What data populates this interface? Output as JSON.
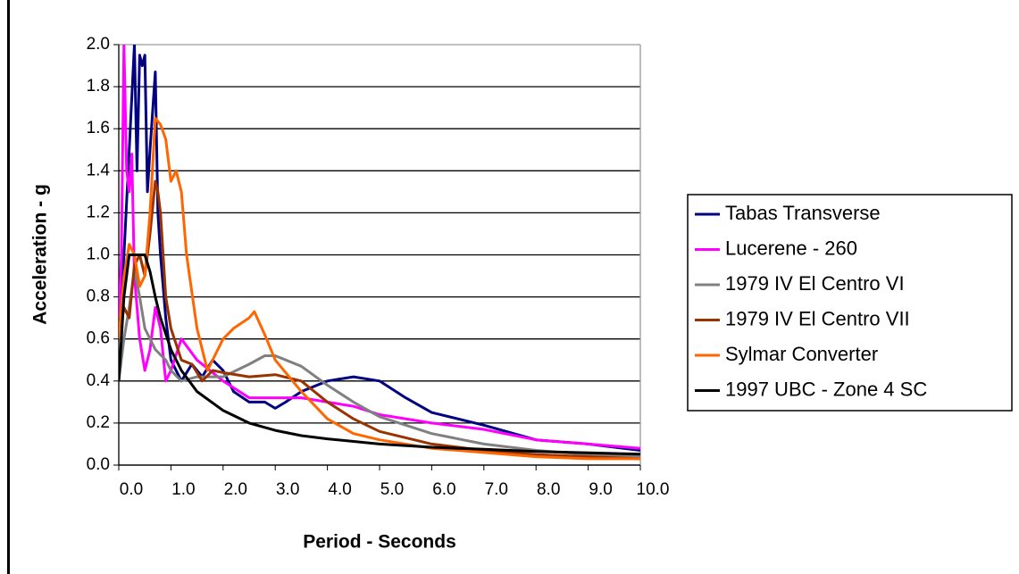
{
  "chart_data": {
    "type": "line",
    "xlabel": "Period - Seconds",
    "ylabel": "Acceleration - g",
    "xlim": [
      0,
      10
    ],
    "ylim": [
      0,
      2
    ],
    "xticks": [
      {
        "value": 0,
        "label": "0.0"
      },
      {
        "value": 1,
        "label": "1.0"
      },
      {
        "value": 2,
        "label": "2.0"
      },
      {
        "value": 3,
        "label": "3.0"
      },
      {
        "value": 4,
        "label": "4.0"
      },
      {
        "value": 5,
        "label": "5.0"
      },
      {
        "value": 6,
        "label": "6.0"
      },
      {
        "value": 7,
        "label": "7.0"
      },
      {
        "value": 8,
        "label": "8.0"
      },
      {
        "value": 9,
        "label": "9.0"
      },
      {
        "value": 10,
        "label": "10.0"
      }
    ],
    "yticks": [
      {
        "value": 0,
        "label": "0.0"
      },
      {
        "value": 0.2,
        "label": "0.2"
      },
      {
        "value": 0.4,
        "label": "0.4"
      },
      {
        "value": 0.6,
        "label": "0.6"
      },
      {
        "value": 0.8,
        "label": "0.8"
      },
      {
        "value": 1,
        "label": "1.0"
      },
      {
        "value": 1.2,
        "label": "1.2"
      },
      {
        "value": 1.4,
        "label": "1.4"
      },
      {
        "value": 1.6,
        "label": "1.6"
      },
      {
        "value": 1.8,
        "label": "1.8"
      },
      {
        "value": 2,
        "label": "2.0"
      }
    ],
    "grid": true,
    "legend": "right",
    "series": [
      {
        "name": "Tabas Transverse",
        "color": "#000080",
        "x": [
          0,
          0.05,
          0.1,
          0.2,
          0.3,
          0.35,
          0.4,
          0.45,
          0.5,
          0.55,
          0.6,
          0.7,
          0.75,
          0.8,
          0.9,
          1.0,
          1.2,
          1.4,
          1.6,
          1.8,
          2.0,
          2.2,
          2.5,
          2.8,
          3.0,
          3.2,
          3.5,
          4.0,
          4.5,
          5.0,
          5.5,
          6.0,
          7.0,
          8.0,
          9.0,
          10.0
        ],
        "values": [
          0.6,
          0.8,
          1.0,
          1.5,
          2.0,
          1.4,
          1.95,
          1.9,
          1.95,
          1.3,
          1.5,
          1.87,
          1.2,
          1.0,
          0.7,
          0.5,
          0.4,
          0.48,
          0.42,
          0.5,
          0.45,
          0.35,
          0.3,
          0.3,
          0.27,
          0.3,
          0.35,
          0.4,
          0.42,
          0.4,
          0.32,
          0.25,
          0.19,
          0.12,
          0.1,
          0.07
        ]
      },
      {
        "name": "Lucerene - 260",
        "color": "#ff00ff",
        "x": [
          0,
          0.05,
          0.1,
          0.15,
          0.2,
          0.25,
          0.3,
          0.4,
          0.5,
          0.6,
          0.7,
          0.8,
          0.9,
          1.0,
          1.2,
          1.5,
          2.0,
          2.5,
          3.0,
          3.5,
          4.0,
          4.5,
          5.0,
          6.0,
          7.0,
          8.0,
          9.0,
          10.0
        ],
        "values": [
          0.7,
          1.0,
          2.0,
          1.4,
          1.3,
          1.48,
          0.9,
          0.6,
          0.45,
          0.55,
          0.75,
          0.65,
          0.4,
          0.45,
          0.6,
          0.5,
          0.4,
          0.32,
          0.32,
          0.32,
          0.3,
          0.28,
          0.24,
          0.2,
          0.17,
          0.12,
          0.1,
          0.08
        ]
      },
      {
        "name": "1979 IV El Centro VI",
        "color": "#808080",
        "x": [
          0,
          0.1,
          0.2,
          0.3,
          0.4,
          0.5,
          0.7,
          0.9,
          1.0,
          1.2,
          1.5,
          2.0,
          2.5,
          2.8,
          3.0,
          3.5,
          4.0,
          4.5,
          5.0,
          6.0,
          7.0,
          8.0,
          9.0,
          10.0
        ],
        "values": [
          0.4,
          0.6,
          0.75,
          0.93,
          0.8,
          0.65,
          0.55,
          0.5,
          0.45,
          0.4,
          0.42,
          0.42,
          0.48,
          0.52,
          0.52,
          0.47,
          0.38,
          0.3,
          0.23,
          0.15,
          0.1,
          0.07,
          0.05,
          0.04
        ]
      },
      {
        "name": "1979 IV El Centro VII",
        "color": "#993300",
        "x": [
          0,
          0.1,
          0.2,
          0.3,
          0.4,
          0.5,
          0.6,
          0.7,
          0.75,
          0.8,
          0.9,
          1.0,
          1.2,
          1.4,
          1.6,
          1.8,
          2.0,
          2.5,
          3.0,
          3.5,
          4.0,
          4.5,
          5.0,
          6.0,
          7.0,
          8.0,
          9.0,
          10.0
        ],
        "values": [
          0.6,
          0.75,
          0.7,
          0.95,
          1.0,
          0.9,
          1.1,
          1.35,
          1.3,
          1.2,
          0.8,
          0.65,
          0.5,
          0.48,
          0.4,
          0.45,
          0.44,
          0.42,
          0.43,
          0.4,
          0.3,
          0.22,
          0.16,
          0.1,
          0.07,
          0.05,
          0.04,
          0.03
        ]
      },
      {
        "name": "Sylmar Converter",
        "color": "#ff6600",
        "x": [
          0,
          0.1,
          0.2,
          0.3,
          0.4,
          0.5,
          0.6,
          0.7,
          0.8,
          0.9,
          1.0,
          1.1,
          1.2,
          1.3,
          1.5,
          1.7,
          2.0,
          2.2,
          2.5,
          2.6,
          2.8,
          3.0,
          3.5,
          4.0,
          4.5,
          5.0,
          6.0,
          7.0,
          8.0,
          9.0,
          10.0
        ],
        "values": [
          0.6,
          0.9,
          1.05,
          1.0,
          0.85,
          0.9,
          1.2,
          1.65,
          1.62,
          1.55,
          1.35,
          1.4,
          1.3,
          1.0,
          0.65,
          0.45,
          0.6,
          0.65,
          0.7,
          0.73,
          0.62,
          0.5,
          0.35,
          0.22,
          0.15,
          0.12,
          0.08,
          0.06,
          0.04,
          0.03,
          0.03
        ]
      },
      {
        "name": "1997 UBC - Zone 4 SC",
        "color": "#000000",
        "x": [
          0,
          0.1,
          0.2,
          0.3,
          0.4,
          0.5,
          0.6,
          0.7,
          0.8,
          1.0,
          1.2,
          1.5,
          2.0,
          2.5,
          3.0,
          3.5,
          4.0,
          5.0,
          6.0,
          7.0,
          8.0,
          9.0,
          10.0
        ],
        "values": [
          0.4,
          0.8,
          1.0,
          1.0,
          1.0,
          1.0,
          0.92,
          0.8,
          0.7,
          0.55,
          0.45,
          0.35,
          0.26,
          0.2,
          0.165,
          0.14,
          0.125,
          0.1,
          0.085,
          0.075,
          0.065,
          0.058,
          0.052
        ]
      }
    ]
  }
}
